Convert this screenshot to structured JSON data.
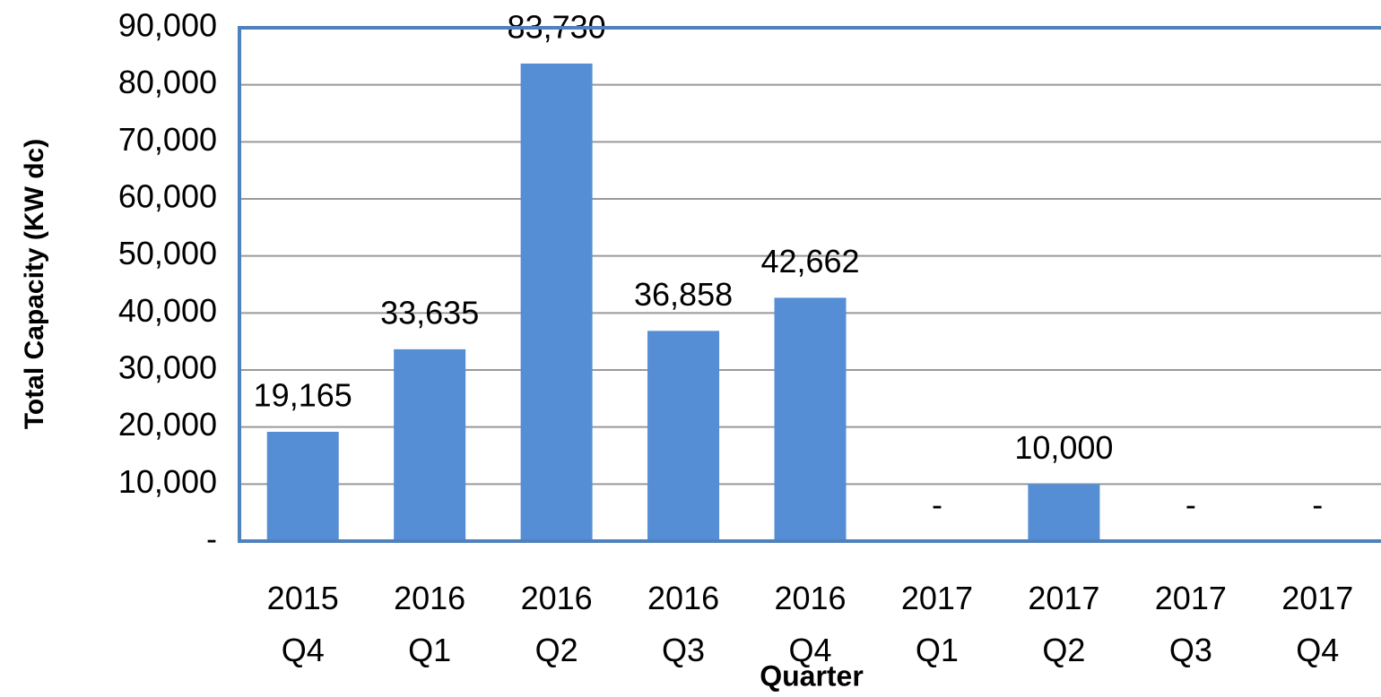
{
  "chart_data": {
    "type": "bar",
    "x_label": "Quarter",
    "y_label": "Total Capacity (KW dc)",
    "categories": [
      "2015 Q4",
      "2016 Q1",
      "2016 Q2",
      "2016 Q3",
      "2016 Q4",
      "2017 Q1",
      "2017 Q2",
      "2017 Q3",
      "2017 Q4"
    ],
    "values": [
      19165,
      33635,
      83730,
      36858,
      42662,
      0,
      10000,
      0,
      0
    ],
    "value_labels": [
      "19,165",
      "33,635",
      "83,730",
      "36,858",
      "42,662",
      "-",
      "10,000",
      "-",
      "-"
    ],
    "color": "#558ed5",
    "ylim": [
      0,
      90000
    ],
    "yticks": [
      {
        "value": 0,
        "label": "-"
      },
      {
        "value": 10000,
        "label": "10,000"
      },
      {
        "value": 20000,
        "label": "20,000"
      },
      {
        "value": 30000,
        "label": "30,000"
      },
      {
        "value": 40000,
        "label": "40,000"
      },
      {
        "value": 50000,
        "label": "50,000"
      },
      {
        "value": 60000,
        "label": "60,000"
      },
      {
        "value": 70000,
        "label": "70,000"
      },
      {
        "value": 80000,
        "label": "80,000"
      },
      {
        "value": 90000,
        "label": "90,000"
      }
    ],
    "grid": true
  }
}
